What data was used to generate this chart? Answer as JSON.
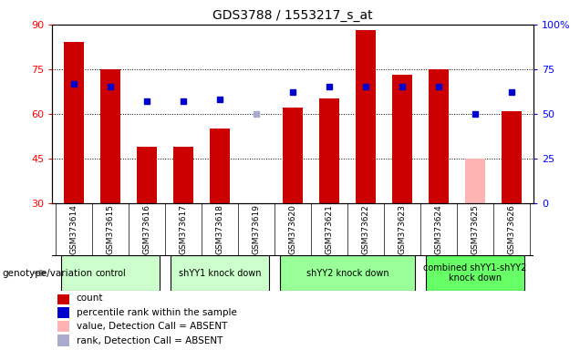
{
  "title": "GDS3788 / 1553217_s_at",
  "samples": [
    "GSM373614",
    "GSM373615",
    "GSM373616",
    "GSM373617",
    "GSM373618",
    "GSM373619",
    "GSM373620",
    "GSM373621",
    "GSM373622",
    "GSM373623",
    "GSM373624",
    "GSM373625",
    "GSM373626"
  ],
  "bar_values": [
    84,
    75,
    49,
    49,
    55,
    30,
    62,
    65,
    88,
    73,
    75,
    null,
    61
  ],
  "bar_absent_values": [
    null,
    null,
    null,
    null,
    null,
    null,
    null,
    null,
    null,
    null,
    null,
    45,
    null
  ],
  "bar_color_normal": "#cc0000",
  "bar_color_absent": "#ffb3b3",
  "percentile_values": [
    67,
    65,
    57,
    57,
    58,
    null,
    62,
    65,
    65,
    65,
    65,
    50,
    62
  ],
  "percentile_absent_values": [
    null,
    null,
    null,
    null,
    null,
    50,
    null,
    null,
    null,
    null,
    null,
    null,
    null
  ],
  "percentile_color_normal": "#0000cc",
  "percentile_color_absent": "#aaaacc",
  "ylim_left": [
    30,
    90
  ],
  "ylim_right": [
    0,
    100
  ],
  "yticks_left": [
    30,
    45,
    60,
    75,
    90
  ],
  "yticks_right": [
    0,
    25,
    50,
    75,
    100
  ],
  "ytick_labels_right": [
    "0",
    "25",
    "50",
    "75",
    "100%"
  ],
  "group_boundaries": [
    {
      "label": "control",
      "start": 0,
      "end": 2,
      "color": "#ccffcc"
    },
    {
      "label": "shYY1 knock down",
      "start": 3,
      "end": 5,
      "color": "#ccffcc"
    },
    {
      "label": "shYY2 knock down",
      "start": 6,
      "end": 9,
      "color": "#99ff99"
    },
    {
      "label": "combined shYY1-shYY2\nknock down",
      "start": 10,
      "end": 12,
      "color": "#66ff66"
    }
  ],
  "group_label_prefix": "genotype/variation",
  "legend_items": [
    {
      "color": "#cc0000",
      "label": "count"
    },
    {
      "color": "#0000cc",
      "label": "percentile rank within the sample"
    },
    {
      "color": "#ffb3b3",
      "label": "value, Detection Call = ABSENT"
    },
    {
      "color": "#aaaacc",
      "label": "rank, Detection Call = ABSENT"
    }
  ],
  "bar_width": 0.55,
  "plot_bg": "#f0f0f0",
  "xtick_bg": "#d0d0d0"
}
